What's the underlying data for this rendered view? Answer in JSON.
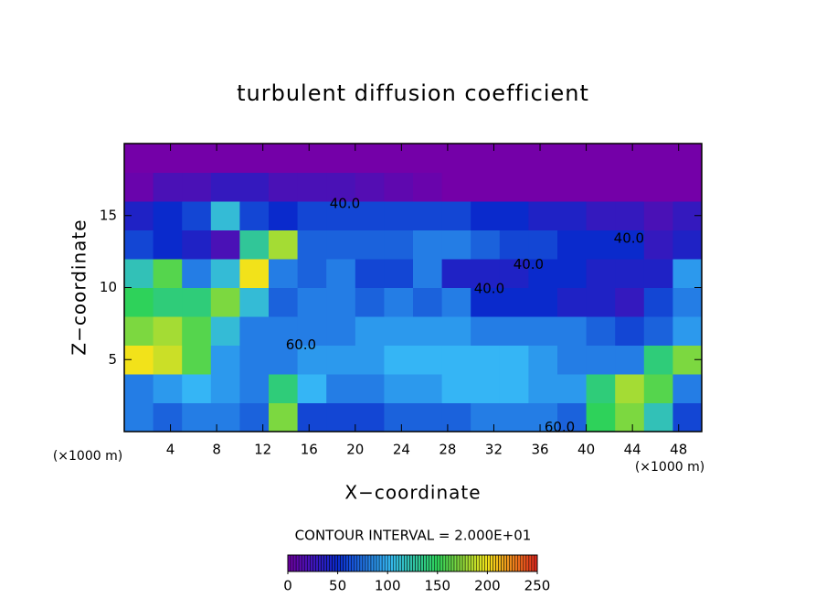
{
  "chart_data": {
    "type": "heatmap",
    "title": "turbulent diffusion coefficient",
    "x_label": "X−coordinate",
    "y_label": "Z−coordinate",
    "x_unit": "(×1000 m)",
    "note": "CONTOUR INTERVAL = 2.000E+01",
    "xlim": [
      0,
      50
    ],
    "ylim": [
      0,
      20
    ],
    "xticks": [
      4,
      8,
      12,
      16,
      20,
      24,
      28,
      32,
      36,
      40,
      44,
      48
    ],
    "yticks": [
      5,
      10,
      15
    ],
    "xbins": [
      0,
      2.5,
      5,
      7.5,
      10,
      12.5,
      15,
      17.5,
      20,
      22.5,
      25,
      27.5,
      30,
      32.5,
      35,
      37.5,
      40,
      42.5,
      45,
      47.5,
      50
    ],
    "ybins": [
      0,
      2,
      4,
      6,
      8,
      10,
      12,
      14,
      16,
      18,
      20
    ],
    "z": [
      [
        80,
        70,
        80,
        80,
        70,
        170,
        60,
        60,
        60,
        70,
        70,
        70,
        80,
        80,
        80,
        70,
        150,
        170,
        120,
        60
      ],
      [
        80,
        90,
        100,
        90,
        80,
        140,
        100,
        80,
        80,
        90,
        90,
        100,
        100,
        100,
        90,
        90,
        140,
        180,
        160,
        80
      ],
      [
        200,
        190,
        160,
        90,
        80,
        80,
        90,
        90,
        90,
        100,
        100,
        100,
        100,
        100,
        90,
        80,
        80,
        80,
        140,
        170
      ],
      [
        170,
        180,
        160,
        110,
        80,
        80,
        80,
        80,
        90,
        90,
        90,
        90,
        80,
        80,
        80,
        80,
        70,
        60,
        70,
        90
      ],
      [
        150,
        140,
        140,
        170,
        110,
        70,
        80,
        80,
        70,
        80,
        70,
        80,
        50,
        50,
        50,
        40,
        40,
        30,
        60,
        80
      ],
      [
        120,
        160,
        80,
        110,
        200,
        80,
        70,
        80,
        60,
        60,
        80,
        40,
        40,
        40,
        50,
        50,
        40,
        40,
        40,
        90
      ],
      [
        60,
        50,
        40,
        20,
        130,
        180,
        70,
        70,
        70,
        70,
        80,
        80,
        70,
        60,
        60,
        50,
        50,
        50,
        30,
        40
      ],
      [
        40,
        50,
        60,
        110,
        60,
        50,
        60,
        60,
        60,
        60,
        60,
        60,
        50,
        50,
        40,
        40,
        30,
        30,
        20,
        30
      ],
      [
        5,
        20,
        20,
        30,
        30,
        20,
        20,
        20,
        15,
        10,
        5,
        0,
        0,
        0,
        0,
        0,
        0,
        0,
        0,
        0
      ],
      [
        0,
        0,
        0,
        0,
        0,
        0,
        0,
        0,
        0,
        0,
        0,
        0,
        0,
        0,
        0,
        0,
        0,
        0,
        0,
        0
      ]
    ],
    "clim": [
      0,
      250
    ],
    "colorbar_ticks": [
      0,
      50,
      100,
      150,
      200,
      250
    ],
    "colormap": [
      "#7400a8",
      "#0a2acc",
      "#35b5f5",
      "#2ed25a",
      "#f2e21a",
      "#e8281e"
    ],
    "annotations": [
      {
        "text": "40.0",
        "x": 43.7,
        "y": 13.4
      },
      {
        "text": "40.0",
        "x": 35,
        "y": 11.6
      },
      {
        "text": "40.0",
        "x": 31.6,
        "y": 9.9
      },
      {
        "text": "40.0",
        "x": 19.1,
        "y": 15.8
      },
      {
        "text": "60.0",
        "x": 15.3,
        "y": 6.0
      },
      {
        "text": "60.0",
        "x": 37.7,
        "y": 0.3
      }
    ]
  }
}
